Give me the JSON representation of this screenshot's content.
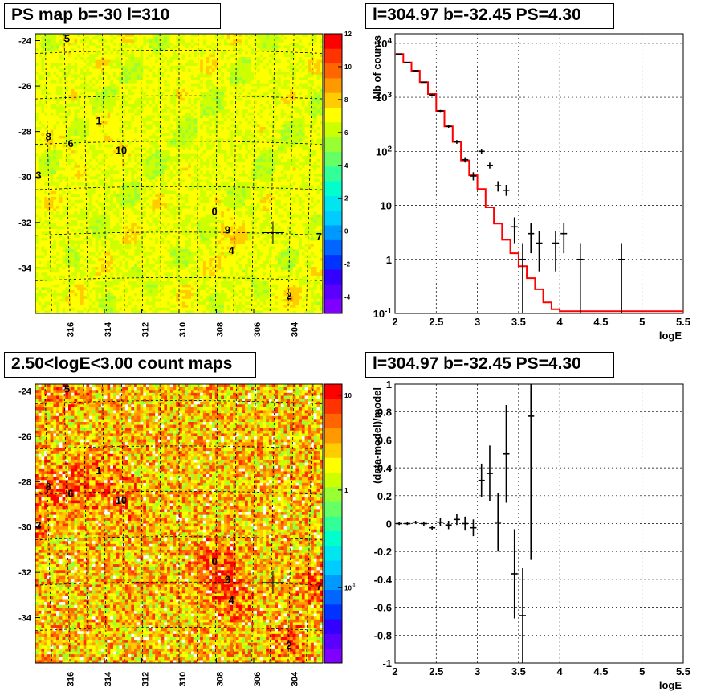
{
  "titles": {
    "ps_map": "PS map b=-30 l=310",
    "spectrum": "l=304.97 b=-32.45 PS=4.30",
    "count_map": "2.50<logE<3.00 count maps",
    "residual": "l=304.97 b=-32.45 PS=4.30"
  },
  "chart_data": [
    {
      "type": "heatmap",
      "title": "PS map b=-30 l=310",
      "xlabel": "",
      "ylabel": "",
      "x_ticks": [
        "316",
        "314",
        "312",
        "310",
        "308",
        "306",
        "304"
      ],
      "y_ticks": [
        "-24",
        "-26",
        "-28",
        "-30",
        "-32",
        "-34"
      ],
      "xlim": [
        317.7,
        302.3
      ],
      "ylim": [
        -36.0,
        -23.7
      ],
      "colorbar_ticks": [
        "-4",
        "-2",
        "0",
        "2",
        "4",
        "6",
        "8",
        "10",
        "12"
      ],
      "colorbar_range": [
        -5,
        12
      ],
      "background_level": 0.7,
      "sources": [
        {
          "label": "5",
          "x": 316.0,
          "y": -23.9
        },
        {
          "label": "1",
          "x": 314.3,
          "y": -27.5
        },
        {
          "label": "8",
          "x": 317.0,
          "y": -28.2
        },
        {
          "label": "6",
          "x": 315.8,
          "y": -28.5
        },
        {
          "label": "10",
          "x": 313.1,
          "y": -28.8
        },
        {
          "label": "3",
          "x": 318.0,
          "y": -29.9
        },
        {
          "label": "0",
          "x": 308.1,
          "y": -31.5
        },
        {
          "label": "9",
          "x": 307.4,
          "y": -32.3
        },
        {
          "label": "4",
          "x": 307.2,
          "y": -33.2
        },
        {
          "label": "7",
          "x": 302.5,
          "y": -32.6
        },
        {
          "label": "2",
          "x": 304.1,
          "y": -35.2
        }
      ],
      "marker": {
        "x": 304.97,
        "y": -32.45
      }
    },
    {
      "type": "line",
      "title": "l=304.97 b=-32.45 PS=4.30",
      "xlabel": "logE",
      "ylabel": "Nb of counts",
      "xlim": [
        2,
        5.5
      ],
      "ylim": [
        0.1,
        15000
      ],
      "log_y": true,
      "grid": true,
      "x_ticks": [
        "2",
        "2.5",
        "3",
        "3.5",
        "4",
        "4.5",
        "5",
        "5.5"
      ],
      "y_ticks": [
        "10^-1",
        "1",
        "10",
        "10^2",
        "10^3",
        "10^4"
      ],
      "series": [
        {
          "kind": "model-step",
          "color": "#ff0000",
          "edges": [
            2.0,
            2.1,
            2.2,
            2.3,
            2.4,
            2.5,
            2.6,
            2.7,
            2.8,
            2.9,
            3.0,
            3.1,
            3.2,
            3.3,
            3.4,
            3.5,
            3.6,
            3.7,
            3.8,
            3.9,
            4.0,
            4.1,
            4.2,
            4.3,
            4.4,
            4.5,
            4.6,
            4.7,
            4.8,
            4.9,
            5.0,
            5.1,
            5.2,
            5.3,
            5.4,
            5.5
          ],
          "values": [
            6300,
            4400,
            3100,
            1900,
            1150,
            560,
            290,
            150,
            68,
            36,
            20,
            9.2,
            4.6,
            2.3,
            1.3,
            0.75,
            0.45,
            0.28,
            0.16,
            0.12,
            0.11,
            0.11,
            0.11,
            0.11,
            0.11,
            0.11,
            0.11,
            0.11,
            0.11,
            0.11,
            0.11,
            0.11,
            0.11,
            0.11,
            0.11
          ]
        },
        {
          "kind": "data-points",
          "color": "#000000",
          "points": [
            {
              "x": 2.05,
              "y": 6300,
              "lo": 6200,
              "hi": 6400
            },
            {
              "x": 2.15,
              "y": 4400,
              "lo": 4300,
              "hi": 4500
            },
            {
              "x": 2.25,
              "y": 3100,
              "lo": 3000,
              "hi": 3200
            },
            {
              "x": 2.35,
              "y": 1900,
              "lo": 1850,
              "hi": 1950
            },
            {
              "x": 2.45,
              "y": 1100,
              "lo": 1060,
              "hi": 1140
            },
            {
              "x": 2.55,
              "y": 560,
              "lo": 535,
              "hi": 585
            },
            {
              "x": 2.65,
              "y": 290,
              "lo": 273,
              "hi": 307
            },
            {
              "x": 2.75,
              "y": 150,
              "lo": 138,
              "hi": 162
            },
            {
              "x": 2.85,
              "y": 70,
              "lo": 62,
              "hi": 78
            },
            {
              "x": 2.95,
              "y": 35,
              "lo": 29,
              "hi": 41
            },
            {
              "x": 3.05,
              "y": 100,
              "lo": 90,
              "hi": 110
            },
            {
              "x": 3.15,
              "y": 55,
              "lo": 48,
              "hi": 62
            },
            {
              "x": 3.25,
              "y": 23,
              "lo": 18,
              "hi": 28
            },
            {
              "x": 3.35,
              "y": 19,
              "lo": 15,
              "hi": 24
            },
            {
              "x": 3.45,
              "y": 4,
              "lo": 2,
              "hi": 6
            },
            {
              "x": 3.55,
              "y": 1,
              "lo": 0.1,
              "hi": 2
            },
            {
              "x": 3.65,
              "y": 3,
              "lo": 1.3,
              "hi": 4.7
            },
            {
              "x": 3.75,
              "y": 2,
              "lo": 0.6,
              "hi": 3.4
            },
            {
              "x": 3.95,
              "y": 2,
              "lo": 0.6,
              "hi": 3.4
            },
            {
              "x": 4.05,
              "y": 3,
              "lo": 1.3,
              "hi": 4.7
            },
            {
              "x": 4.25,
              "y": 1,
              "lo": 0.1,
              "hi": 2
            },
            {
              "x": 4.75,
              "y": 1,
              "lo": 0.1,
              "hi": 2
            }
          ]
        }
      ]
    },
    {
      "type": "heatmap",
      "title": "2.50<logE<3.00 count maps",
      "xlabel": "",
      "ylabel": "",
      "x_ticks": [
        "316",
        "314",
        "312",
        "310",
        "308",
        "306",
        "304"
      ],
      "y_ticks": [
        "-24",
        "-26",
        "-28",
        "-30",
        "-32",
        "-34"
      ],
      "xlim": [
        317.7,
        302.3
      ],
      "ylim": [
        -36.0,
        -23.7
      ],
      "colorbar_ticks": [
        "10",
        "1",
        "10^-1"
      ],
      "colorbar_scale": "log",
      "background_level": 0.78,
      "sources": [
        {
          "label": "5",
          "x": 316.0,
          "y": -23.9
        },
        {
          "label": "1",
          "x": 314.3,
          "y": -27.5
        },
        {
          "label": "8",
          "x": 317.0,
          "y": -28.2
        },
        {
          "label": "6",
          "x": 315.8,
          "y": -28.5
        },
        {
          "label": "10",
          "x": 313.1,
          "y": -28.8
        },
        {
          "label": "3",
          "x": 318.0,
          "y": -29.9
        },
        {
          "label": "0",
          "x": 308.1,
          "y": -31.5
        },
        {
          "label": "9",
          "x": 307.4,
          "y": -32.3
        },
        {
          "label": "4",
          "x": 307.2,
          "y": -33.2
        },
        {
          "label": "7",
          "x": 302.5,
          "y": -32.6
        },
        {
          "label": "2",
          "x": 304.1,
          "y": -35.2
        }
      ],
      "marker": {
        "x": 304.97,
        "y": -32.45
      }
    },
    {
      "type": "scatter",
      "title": "l=304.97 b=-32.45 PS=4.30",
      "xlabel": "logE",
      "ylabel": "(data-model)/model",
      "xlim": [
        2,
        5.5
      ],
      "ylim": [
        -1,
        1
      ],
      "grid": true,
      "x_ticks": [
        "2",
        "2.5",
        "3",
        "3.5",
        "4",
        "4.5",
        "5",
        "5.5"
      ],
      "y_ticks": [
        "-1",
        "-0.8",
        "-0.6",
        "-0.4",
        "-0.2",
        "0",
        "0.2",
        "0.4",
        "0.6",
        "0.8",
        "1"
      ],
      "points": [
        {
          "x": 2.05,
          "y": 0.0,
          "err": 0.01
        },
        {
          "x": 2.15,
          "y": 0.0,
          "err": 0.01
        },
        {
          "x": 2.25,
          "y": 0.01,
          "err": 0.01
        },
        {
          "x": 2.35,
          "y": 0.0,
          "err": 0.015
        },
        {
          "x": 2.45,
          "y": -0.03,
          "err": 0.015
        },
        {
          "x": 2.55,
          "y": 0.01,
          "err": 0.03
        },
        {
          "x": 2.65,
          "y": -0.01,
          "err": 0.03
        },
        {
          "x": 2.75,
          "y": 0.03,
          "err": 0.04
        },
        {
          "x": 2.85,
          "y": 0.0,
          "err": 0.05
        },
        {
          "x": 2.95,
          "y": -0.03,
          "err": 0.06
        },
        {
          "x": 3.05,
          "y": 0.31,
          "err": 0.12
        },
        {
          "x": 3.15,
          "y": 0.36,
          "err": 0.2
        },
        {
          "x": 3.25,
          "y": 0.01,
          "err": 0.21
        },
        {
          "x": 3.35,
          "y": 0.5,
          "err": 0.35
        },
        {
          "x": 3.45,
          "y": -0.36,
          "err": 0.32
        },
        {
          "x": 3.55,
          "y": -0.66,
          "err": 0.34
        },
        {
          "x": 3.65,
          "y": 0.77,
          "err": 1.03
        }
      ]
    }
  ]
}
